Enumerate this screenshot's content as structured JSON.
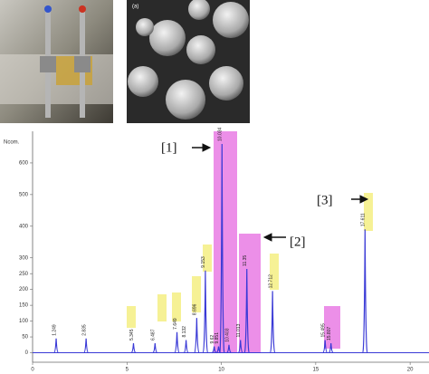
{
  "photo_label": "(a)",
  "chart_data": {
    "type": "chromatogram",
    "y_label": "Ncom.",
    "xlim": [
      0,
      21
    ],
    "ylim": [
      -30,
      700
    ],
    "xticks": [
      0,
      5,
      10,
      15,
      20
    ],
    "yticks": [
      0,
      50,
      100,
      150,
      200,
      250,
      300,
      400,
      500,
      600
    ],
    "color": "#3a3ad6",
    "x": [
      1.249,
      2.835,
      5.345,
      6.487,
      7.649,
      8.132,
      8.696,
      9.153,
      9.62,
      9.851,
      10.034,
      10.403,
      11.013,
      11.35,
      12.712,
      15.495,
      15.807,
      17.611
    ],
    "values": [
      45,
      45,
      30,
      30,
      65,
      40,
      110,
      260,
      20,
      20,
      660,
      25,
      40,
      265,
      195,
      40,
      30,
      390
    ],
    "annotations": [
      "[1]",
      "[2]",
      "[3]"
    ]
  }
}
